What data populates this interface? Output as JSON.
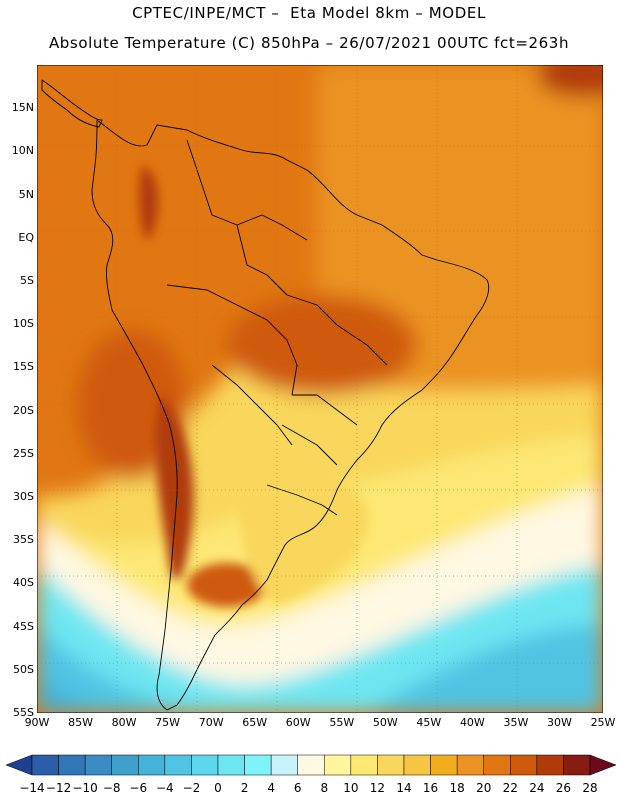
{
  "header": {
    "line1": "CPTEC/INPE/MCT –  Eta Model 8km – MODEL",
    "line2": "Absolute Temperature (C) 850hPa – 26/07/2021 00UTC fct=263h"
  },
  "map": {
    "lat_labels": [
      "15N",
      "10N",
      "5N",
      "EQ",
      "5S",
      "10S",
      "15S",
      "20S",
      "25S",
      "30S",
      "35S",
      "40S",
      "45S",
      "50S",
      "55S"
    ],
    "lon_labels": [
      "90W",
      "85W",
      "80W",
      "75W",
      "70W",
      "65W",
      "60W",
      "55W",
      "50W",
      "45W",
      "40W",
      "35W",
      "30W",
      "25W"
    ],
    "lat_range": [
      -55,
      20
    ],
    "lon_range": [
      -90,
      -25
    ],
    "zones": [
      {
        "name": "tropical-belt",
        "value_c": 20
      },
      {
        "name": "central-brazil-hot",
        "value_c": 22
      },
      {
        "name": "andes-east-hot",
        "value_c": 24
      },
      {
        "name": "caribbean-hot",
        "value_c": 24
      },
      {
        "name": "atlantic-warm",
        "value_c": 18
      },
      {
        "name": "south-atlantic-mild",
        "value_c": 12
      },
      {
        "name": "south-atlantic-cool",
        "value_c": 6
      },
      {
        "name": "south-atlantic-cold",
        "value_c": 0
      },
      {
        "name": "southern-ocean",
        "value_c": -6
      }
    ]
  },
  "colorbar": {
    "labels": [
      "-14",
      "-12",
      "-10",
      "-8",
      "-6",
      "-4",
      "-2",
      "0",
      "2",
      "4",
      "6",
      "8",
      "10",
      "12",
      "14",
      "16",
      "18",
      "20",
      "22",
      "24",
      "26",
      "28"
    ],
    "colors": [
      "#1f3f8f",
      "#2a5ea8",
      "#3277b5",
      "#3a8cc2",
      "#3fa0cd",
      "#45b2d9",
      "#50c4e3",
      "#5ed6ec",
      "#6ee6f2",
      "#7ff4f8",
      "#c8f3fb",
      "#fff8e2",
      "#fff59a",
      "#fde874",
      "#f9d75c",
      "#f6c542",
      "#f2ad1d",
      "#eb9322",
      "#e07712",
      "#cf5a0c",
      "#b03a0a",
      "#861d12",
      "#6a0a1c"
    ]
  }
}
